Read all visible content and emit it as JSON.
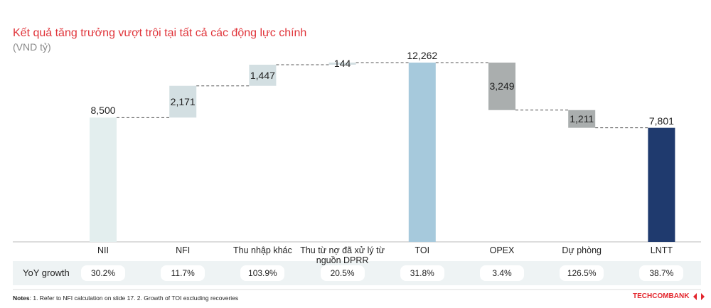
{
  "chart_data": {
    "type": "waterfall",
    "title": "Kết quả tăng trưởng vượt trội tại tất cả các động lực chính",
    "subtitle": "(VND tỷ)",
    "categories": [
      "NII",
      "NFI",
      "Thu nhập khác",
      "Thu từ nợ đã xử lý từ nguồn DPRR",
      "TOI",
      "OPEX",
      "Dự phòng",
      "LNTT"
    ],
    "values": [
      8500,
      2171,
      1447,
      144,
      12262,
      3249,
      1211,
      7801
    ],
    "value_labels": [
      "8,500",
      "2,171",
      "1,447",
      "144",
      "12,262",
      "3,249",
      "1,211",
      "7,801"
    ],
    "measures": [
      "total",
      "increase",
      "increase",
      "increase",
      "total",
      "decrease",
      "decrease",
      "total"
    ],
    "colors": [
      "#e3eeee",
      "#d3dfe2",
      "#d3dfe2",
      "#d3dfe2",
      "#a6c9dc",
      "#aaaeae",
      "#aaaeae",
      "#1f3a6e"
    ],
    "yoy": {
      "label": "YoY growth",
      "values": [
        30.2,
        11.7,
        103.9,
        20.5,
        31.8,
        3.4,
        126.5,
        38.7
      ],
      "value_labels": [
        "30.2%",
        "11.7%",
        "103.9%",
        "20.5%",
        "31.8%",
        "3.4%",
        "126.5%",
        "38.7%"
      ]
    },
    "notes": {
      "label": "Notes",
      "text": ": 1. Refer to NFI calculation on slide 17. 2. Growth of TOI excluding recoveries"
    },
    "logo": "TECHCOMBANK"
  }
}
